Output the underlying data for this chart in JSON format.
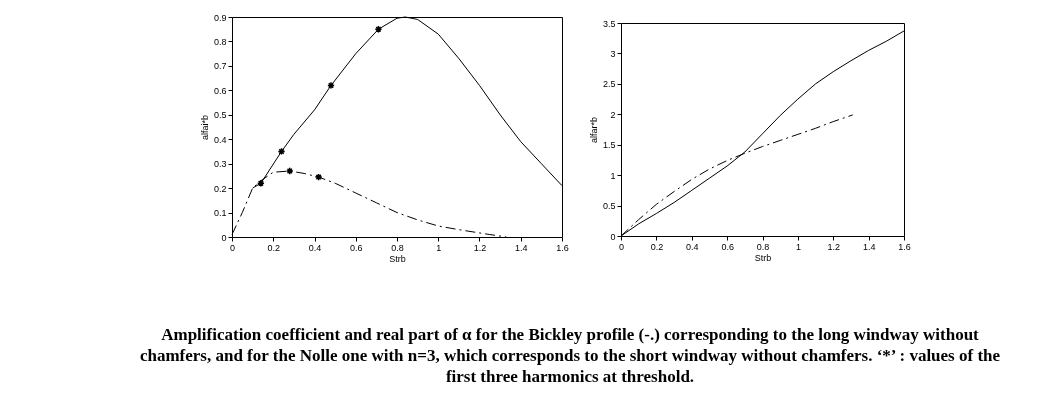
{
  "chart_data": [
    {
      "type": "line",
      "xlabel": "Strb",
      "ylabel": "alfai*b",
      "xlim": [
        0,
        1.6
      ],
      "xticks": [
        0,
        0.2,
        0.4,
        0.6,
        0.8,
        1,
        1.2,
        1.4,
        1.6
      ],
      "ylim": [
        0,
        0.9
      ],
      "yticks": [
        0,
        0.1,
        0.2,
        0.3,
        0.4,
        0.5,
        0.6,
        0.7,
        0.8,
        0.9
      ],
      "grid": false,
      "annotations": [
        "Amplification coefficient and real part of α for the Bickley profile (-.) corresponding to the long windway without chamfers, and for the Nolle one with n=3, which corresponds to the short windway without chamfers. ‘*’ : values of the first three harmonics at threshold."
      ],
      "series": [
        {
          "line_style": "solid",
          "color": "#000000",
          "x": [
            0.1,
            0.14,
            0.24,
            0.3,
            0.4,
            0.48,
            0.6,
            0.71,
            0.8,
            0.84,
            0.9,
            1.0,
            1.1,
            1.2,
            1.3,
            1.4,
            1.5,
            1.6
          ],
          "values": [
            0.2,
            0.22,
            0.35,
            0.42,
            0.52,
            0.62,
            0.75,
            0.85,
            0.895,
            0.9,
            0.89,
            0.83,
            0.73,
            0.62,
            0.5,
            0.39,
            0.3,
            0.21
          ]
        },
        {
          "line_style": "dashed",
          "color": "#000000",
          "x": [
            0,
            0.05,
            0.1,
            0.14,
            0.2,
            0.28,
            0.35,
            0.42,
            0.5,
            0.6,
            0.7,
            0.8,
            0.9,
            1.0,
            1.1,
            1.25,
            1.33
          ],
          "values": [
            0.01,
            0.1,
            0.2,
            0.23,
            0.265,
            0.27,
            0.26,
            0.245,
            0.22,
            0.18,
            0.14,
            0.1,
            0.07,
            0.045,
            0.03,
            0.01,
            0
          ]
        },
        {
          "type": "scatter",
          "marker": "cross",
          "color": "#000000",
          "x": [
            0.14,
            0.24,
            0.48,
            0.71,
            0.28,
            0.42
          ],
          "values": [
            0.22,
            0.35,
            0.62,
            0.85,
            0.27,
            0.245
          ]
        }
      ]
    },
    {
      "type": "line",
      "xlabel": "Strb",
      "ylabel": "alfar*b",
      "xlim": [
        0,
        1.6
      ],
      "xticks": [
        0,
        0.2,
        0.4,
        0.6,
        0.8,
        1,
        1.2,
        1.4,
        1.6
      ],
      "ylim": [
        0,
        3.5
      ],
      "yticks": [
        0,
        0.5,
        1,
        1.5,
        2,
        2.5,
        3,
        3.5
      ],
      "grid": false,
      "series": [
        {
          "line_style": "solid",
          "color": "#000000",
          "x": [
            0,
            0.1,
            0.2,
            0.3,
            0.4,
            0.5,
            0.6,
            0.7,
            0.8,
            0.9,
            1.0,
            1.1,
            1.2,
            1.3,
            1.4,
            1.5,
            1.6
          ],
          "values": [
            0,
            0.2,
            0.37,
            0.55,
            0.75,
            0.95,
            1.15,
            1.38,
            1.68,
            1.98,
            2.25,
            2.5,
            2.7,
            2.88,
            3.05,
            3.2,
            3.37
          ]
        },
        {
          "line_style": "dashed",
          "color": "#000000",
          "x": [
            0,
            0.1,
            0.2,
            0.3,
            0.4,
            0.5,
            0.6,
            0.7,
            0.8,
            0.9,
            1.0,
            1.1,
            1.2,
            1.31
          ],
          "values": [
            0,
            0.27,
            0.52,
            0.73,
            0.93,
            1.1,
            1.24,
            1.36,
            1.47,
            1.57,
            1.67,
            1.77,
            1.88,
            1.99
          ]
        }
      ]
    }
  ]
}
